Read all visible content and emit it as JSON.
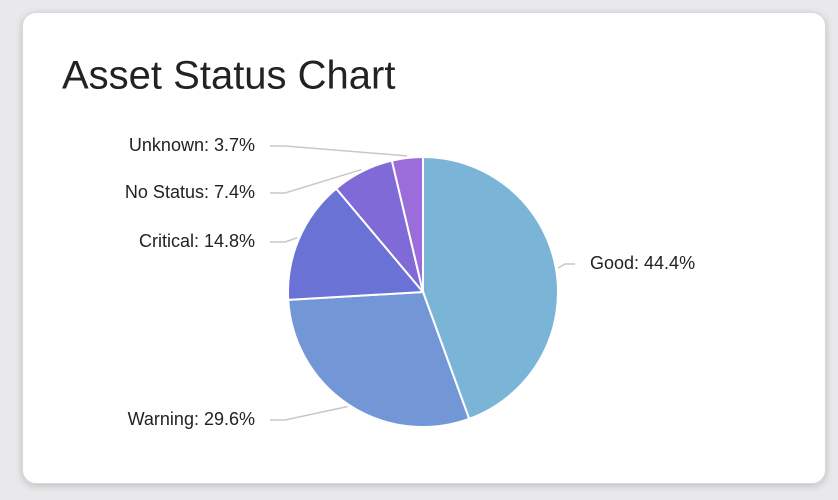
{
  "chart_data": {
    "type": "pie",
    "title": "Asset Status Chart",
    "categories": [
      "Good",
      "Warning",
      "Critical",
      "No Status",
      "Unknown"
    ],
    "values": [
      44.4,
      29.6,
      14.8,
      7.4,
      3.7
    ],
    "value_labels": [
      "Good: 44.4%",
      "Warning: 29.6%",
      "Critical: 14.8%",
      "No Status: 7.4%",
      "Unknown: 3.7%"
    ],
    "colors": [
      "#7ab5d8",
      "#7296d6",
      "#6b72d6",
      "#7f6ad8",
      "#9b6ddb"
    ]
  }
}
